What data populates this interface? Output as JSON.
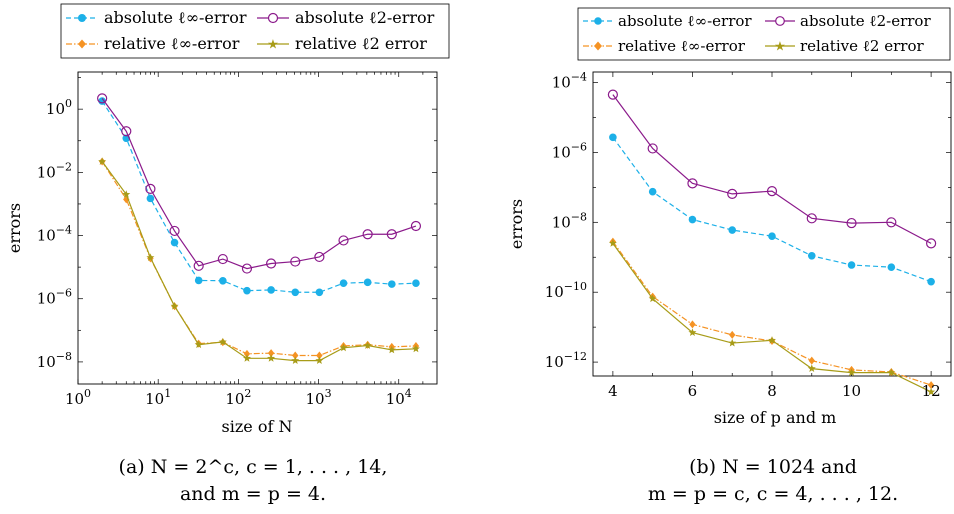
{
  "chart_data": [
    {
      "type": "line",
      "title": "",
      "caption": {
        "line1": "(a) N = 2^c, c = 1, . . . , 14,",
        "line2": "and m = p = 4."
      },
      "xlabel": "size of N",
      "ylabel": "errors",
      "x_scale": "log",
      "y_scale": "log",
      "xlim": [
        1,
        30000
      ],
      "ylim": [
        2e-09,
        15
      ],
      "x_ticks": [
        1,
        10,
        100,
        1000,
        10000
      ],
      "x_tick_labels": [
        "10^0",
        "10^1",
        "10^2",
        "10^3",
        "10^4"
      ],
      "y_ticks": [
        1e-08,
        1e-06,
        0.0001,
        0.01,
        1
      ],
      "y_tick_labels": [
        "10^-8",
        "10^-6",
        "10^-4",
        "10^-2",
        "10^0"
      ],
      "grid": false,
      "legend_placement": "top",
      "x": [
        2,
        4,
        8,
        16,
        32,
        64,
        128,
        256,
        512,
        1024,
        2048,
        4096,
        8192,
        16384
      ],
      "series": [
        {
          "name": "absolute ℓ∞-error",
          "color": "#1cb0e8",
          "dash": "dashed",
          "marker": "dot",
          "values": [
            1.8,
            0.12,
            0.0015,
            6e-05,
            3.8e-06,
            3.7e-06,
            1.8e-06,
            1.9e-06,
            1.6e-06,
            1.6e-06,
            3.1e-06,
            3.3e-06,
            2.9e-06,
            3.1e-06
          ]
        },
        {
          "name": "absolute ℓ2-error",
          "color": "#8b1a8b",
          "dash": "solid",
          "marker": "circle",
          "values": [
            2.2,
            0.2,
            0.003,
            0.00014,
            1.1e-05,
            1.8e-05,
            9e-06,
            1.3e-05,
            1.5e-05,
            2.1e-05,
            7e-05,
            0.00011,
            0.00011,
            0.0002
          ]
        },
        {
          "name": "relative ℓ∞-error",
          "color": "#f59324",
          "dash": "dashdot",
          "marker": "diamond",
          "values": [
            0.022,
            0.0014,
            1.9e-05,
            5.8e-07,
            3.8e-08,
            4.2e-08,
            1.8e-08,
            1.9e-08,
            1.6e-08,
            1.6e-08,
            3.2e-08,
            3.5e-08,
            3e-08,
            3.2e-08
          ]
        },
        {
          "name": "relative ℓ2 error",
          "color": "#a89c18",
          "dash": "solid",
          "marker": "star",
          "values": [
            0.022,
            0.002,
            2e-05,
            5.8e-07,
            3.5e-08,
            4.3e-08,
            1.3e-08,
            1.3e-08,
            1.1e-08,
            1.1e-08,
            2.8e-08,
            3.3e-08,
            2.4e-08,
            2.6e-08
          ]
        }
      ]
    },
    {
      "type": "line",
      "title": "",
      "caption": {
        "line1": "(b) N = 1024 and",
        "line2": "m = p = c, c = 4, . . . , 12."
      },
      "xlabel": "size of p and m",
      "ylabel": "errors",
      "x_scale": "linear",
      "y_scale": "log",
      "xlim": [
        3.5,
        12.5
      ],
      "ylim": [
        4e-13,
        0.0002
      ],
      "x_ticks": [
        4,
        6,
        8,
        10,
        12
      ],
      "x_tick_labels": [
        "4",
        "6",
        "8",
        "10",
        "12"
      ],
      "y_ticks": [
        1e-12,
        1e-10,
        1e-08,
        1e-06,
        0.0001
      ],
      "y_tick_labels": [
        "10^-12",
        "10^-10",
        "10^-8",
        "10^-6",
        "10^-4"
      ],
      "grid": false,
      "legend_placement": "top",
      "x": [
        4,
        5,
        6,
        7,
        8,
        9,
        10,
        11,
        12
      ],
      "series": [
        {
          "name": "absolute ℓ∞-error",
          "color": "#1cb0e8",
          "dash": "dashed",
          "marker": "dot",
          "values": [
            2.7e-06,
            7.5e-08,
            1.2e-08,
            6e-09,
            4e-09,
            1.1e-09,
            6e-10,
            5.2e-10,
            2e-10
          ]
        },
        {
          "name": "absolute ℓ2-error",
          "color": "#8b1a8b",
          "dash": "solid",
          "marker": "circle",
          "values": [
            4.5e-05,
            1.3e-06,
            1.3e-07,
            6.5e-08,
            7.8e-08,
            1.3e-08,
            9.5e-09,
            1e-08,
            2.5e-09
          ]
        },
        {
          "name": "relative ℓ∞-error",
          "color": "#f59324",
          "dash": "dashdot",
          "marker": "diamond",
          "values": [
            2.8e-09,
            7.5e-11,
            1.2e-11,
            6e-12,
            4e-12,
            1.1e-12,
            6e-13,
            5.2e-13,
            2.2e-13
          ]
        },
        {
          "name": "relative ℓ2 error",
          "color": "#a89c18",
          "dash": "solid",
          "marker": "star",
          "values": [
            2.5e-09,
            6.5e-11,
            7e-12,
            3.5e-12,
            4.2e-12,
            6.5e-13,
            5e-13,
            5e-13,
            1.4e-13
          ]
        }
      ]
    }
  ]
}
